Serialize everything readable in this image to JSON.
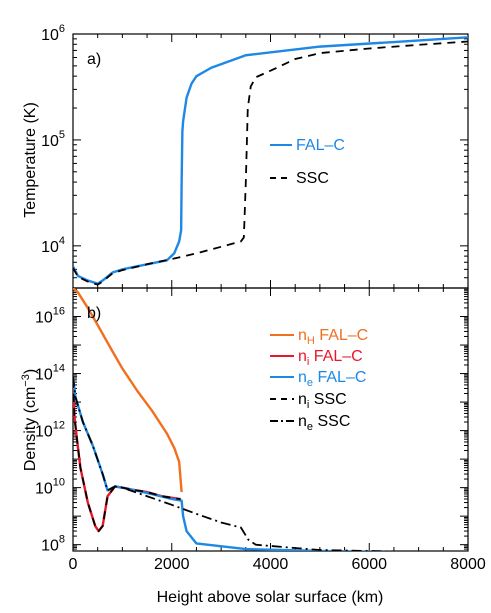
{
  "chart_data": [
    {
      "type": "line",
      "panel_label": "a)",
      "xlabel": "",
      "ylabel": "Temperature (K)",
      "xlim": [
        0,
        8000
      ],
      "ylim": [
        4000,
        1000000
      ],
      "y_scale": "log",
      "x_ticks": [
        0,
        2000,
        4000,
        6000,
        8000
      ],
      "y_tick_labels": [
        {
          "value": 10000,
          "base": "10",
          "exp": "4"
        },
        {
          "value": 100000,
          "base": "10",
          "exp": "5"
        },
        {
          "value": 1000000,
          "base": "10",
          "exp": "6"
        }
      ],
      "legend_position": "center-right",
      "series": [
        {
          "name": "FAL–C",
          "color": "#1e88e5",
          "dash": "solid",
          "x": [
            0,
            100,
            300,
            500,
            600,
            800,
            1000,
            1500,
            1900,
            2050,
            2150,
            2190,
            2200,
            2215,
            2230,
            2300,
            2400,
            2500,
            2800,
            3500,
            5000,
            6500,
            8000
          ],
          "y": [
            6400,
            5200,
            4700,
            4400,
            4700,
            5600,
            6000,
            6700,
            7300,
            8500,
            11000,
            14000,
            40000,
            120000,
            150000,
            250000,
            340000,
            400000,
            480000,
            630000,
            760000,
            840000,
            930000
          ]
        },
        {
          "name": "SSC",
          "color": "#000000",
          "dash": "dashed",
          "x": [
            0,
            100,
            300,
            500,
            600,
            800,
            1000,
            1500,
            2000,
            2500,
            3000,
            3400,
            3460,
            3500,
            3540,
            3600,
            3700,
            4000,
            4500,
            5000,
            6000,
            7000,
            8000
          ],
          "y": [
            6200,
            5100,
            4600,
            4300,
            4600,
            5500,
            5900,
            6700,
            7500,
            8500,
            9800,
            11000,
            12000,
            40000,
            200000,
            320000,
            390000,
            450000,
            580000,
            660000,
            730000,
            790000,
            850000
          ]
        }
      ]
    },
    {
      "type": "line",
      "panel_label": "b)",
      "xlabel": "Height above solar surface (km)",
      "ylabel_main": "Density (cm",
      "ylabel_exp": "−3",
      "ylabel_end": ")",
      "xlim": [
        0,
        8000
      ],
      "ylim": [
        60000000,
        1e+17
      ],
      "y_scale": "log",
      "x_ticks": [
        0,
        2000,
        4000,
        6000,
        8000
      ],
      "y_tick_labels": [
        {
          "value": 100000000.0,
          "base": "10",
          "exp": "8"
        },
        {
          "value": 10000000000.0,
          "base": "10",
          "exp": "10"
        },
        {
          "value": 1000000000000.0,
          "base": "10",
          "exp": "12"
        },
        {
          "value": 100000000000000.0,
          "base": "10",
          "exp": "14"
        },
        {
          "value": 1e+16,
          "base": "10",
          "exp": "16"
        }
      ],
      "legend_position": "top-right",
      "series": [
        {
          "name": "n",
          "name_sub": "H",
          "name_suffix": " FAL–C",
          "color": "#f07020",
          "dash": "solid",
          "x": [
            0,
            100,
            300,
            500,
            800,
            1000,
            1300,
            1600,
            1900,
            2050,
            2150,
            2200
          ],
          "y": [
            1e+17,
            7e+16,
            2e+16,
            5000000000000000.0,
            600000000000000.0,
            150000000000000.0,
            25000000000000.0,
            5000000000000.0,
            800000000000.0,
            250000000000.0,
            80000000000.0,
            7000000000.0
          ]
        },
        {
          "name": "n",
          "name_sub": "i",
          "name_suffix": " FAL–C",
          "color": "#e8182a",
          "dash": "solid",
          "x": [
            0,
            30,
            80,
            150,
            300,
            450,
            520,
            600,
            700,
            850,
            1000,
            1200,
            1500,
            1800,
            2150,
            2180
          ],
          "y": [
            60000000000000.0,
            3000000000000.0,
            500000000000.0,
            50000000000.0,
            3000000000.0,
            450000000.0,
            300000000.0,
            450000000.0,
            5000000000.0,
            11000000000.0,
            10000000000.0,
            8500000000.0,
            7000000000.0,
            5000000000.0,
            4000000000.0,
            4000000000.0
          ]
        },
        {
          "name": "n",
          "name_sub": "e",
          "name_suffix": " FAL–C",
          "color": "#1e88e5",
          "dash": "solid",
          "x": [
            0,
            50,
            200,
            400,
            600,
            700,
            850,
            1000,
            1500,
            2000,
            2200,
            2230,
            2300,
            2500,
            3500,
            5000,
            6500,
            8000
          ],
          "y": [
            80000000000000.0,
            15000000000000.0,
            2000000000000.0,
            300000000000.0,
            30000000000.0,
            8000000000.0,
            11000000000.0,
            10000000000.0,
            6500000000.0,
            4000000000.0,
            3500000000.0,
            1000000000.0,
            300000000.0,
            110000000.0,
            70000000.0,
            60000000.0,
            55000000.0,
            50000000.0
          ]
        },
        {
          "name": "n",
          "name_sub": "i",
          "name_suffix": " SSC",
          "color": "#000000",
          "dash": "dashed",
          "x": [
            0,
            30,
            80,
            150,
            300,
            450,
            520,
            600,
            700,
            850,
            1000,
            1200,
            1500,
            1800,
            2150,
            2180
          ],
          "y": [
            60000000000000.0,
            3000000000000.0,
            500000000000.0,
            50000000000.0,
            3000000000.0,
            450000000.0,
            300000000.0,
            450000000.0,
            5000000000.0,
            11000000000.0,
            10000000000.0,
            8500000000.0,
            7000000000.0,
            5000000000.0,
            4000000000.0,
            4000000000.0
          ]
        },
        {
          "name": "n",
          "name_sub": "e",
          "name_suffix": " SSC",
          "color": "#000000",
          "dash": "dashdot",
          "x": [
            0,
            50,
            200,
            400,
            600,
            700,
            850,
            1000,
            1500,
            2000,
            2500,
            3000,
            3400,
            3550,
            3700,
            4000,
            5000,
            6000,
            8000
          ],
          "y": [
            80000000000000.0,
            15000000000000.0,
            2000000000000.0,
            300000000000.0,
            30000000000.0,
            8000000000.0,
            11000000000.0,
            10000000000.0,
            5000000000.0,
            2500000000.0,
            1200000000.0,
            600000000.0,
            400000000.0,
            150000000.0,
            100000000.0,
            90000000.0,
            65000000.0,
            60000000.0,
            50000000.0
          ]
        }
      ]
    }
  ]
}
